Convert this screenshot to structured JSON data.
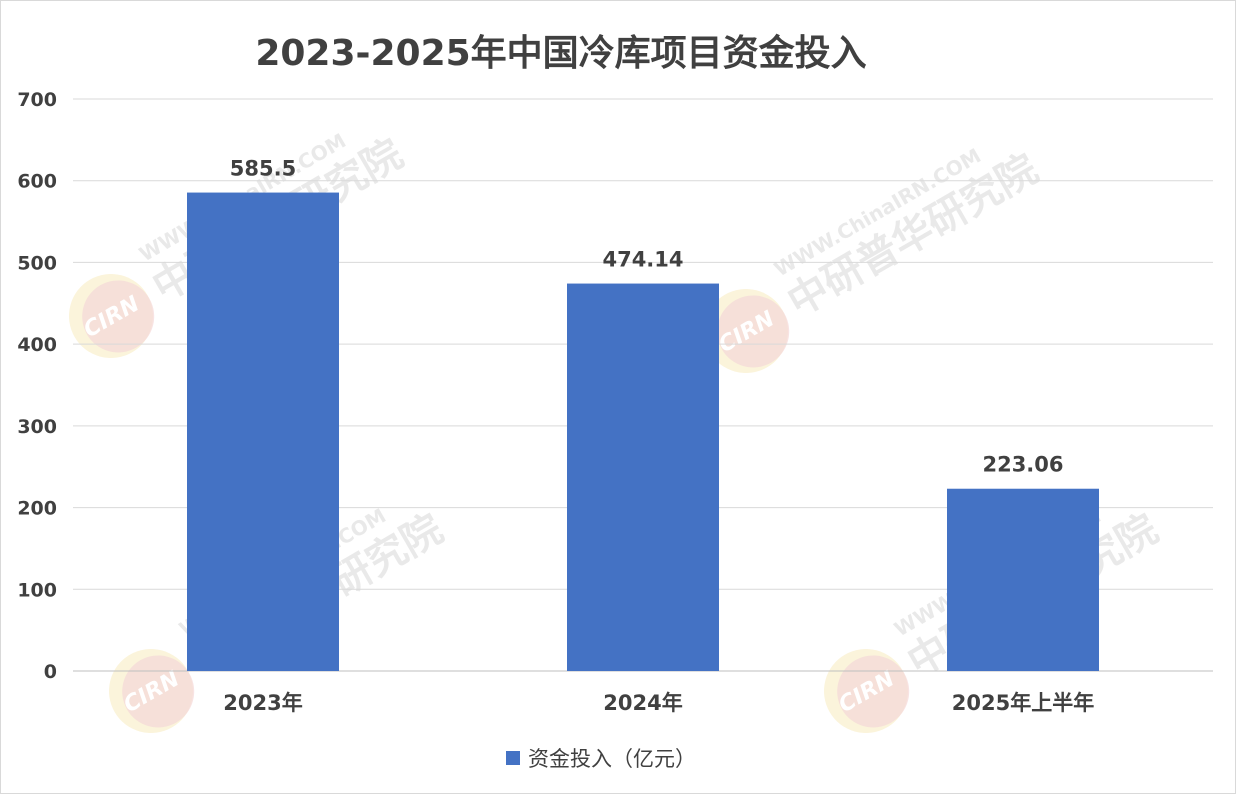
{
  "chart_data": {
    "type": "bar",
    "title": "2023-2025年中国冷库项目资金投入",
    "categories": [
      "2023年",
      "2024年",
      "2025年上半年"
    ],
    "series": [
      {
        "name": "资金投入（亿元）",
        "values": [
          585.5,
          474.14,
          223.06
        ],
        "data_labels": [
          "585.5",
          "474.14",
          "223.06"
        ],
        "color": "#4472C4"
      }
    ],
    "ylim": [
      0,
      700
    ],
    "yticks": [
      0,
      100,
      200,
      300,
      400,
      500,
      600,
      700
    ],
    "grid": true,
    "legend_position": "bottom"
  },
  "watermark": {
    "logo": "CIRN",
    "brand": "中研普华研究院",
    "site": "WWW.ChinaIRN.COM",
    "colors": {
      "brand": "#dcdcdc",
      "logo": "#f3d2d2",
      "accent": "#f7e9b8"
    }
  }
}
